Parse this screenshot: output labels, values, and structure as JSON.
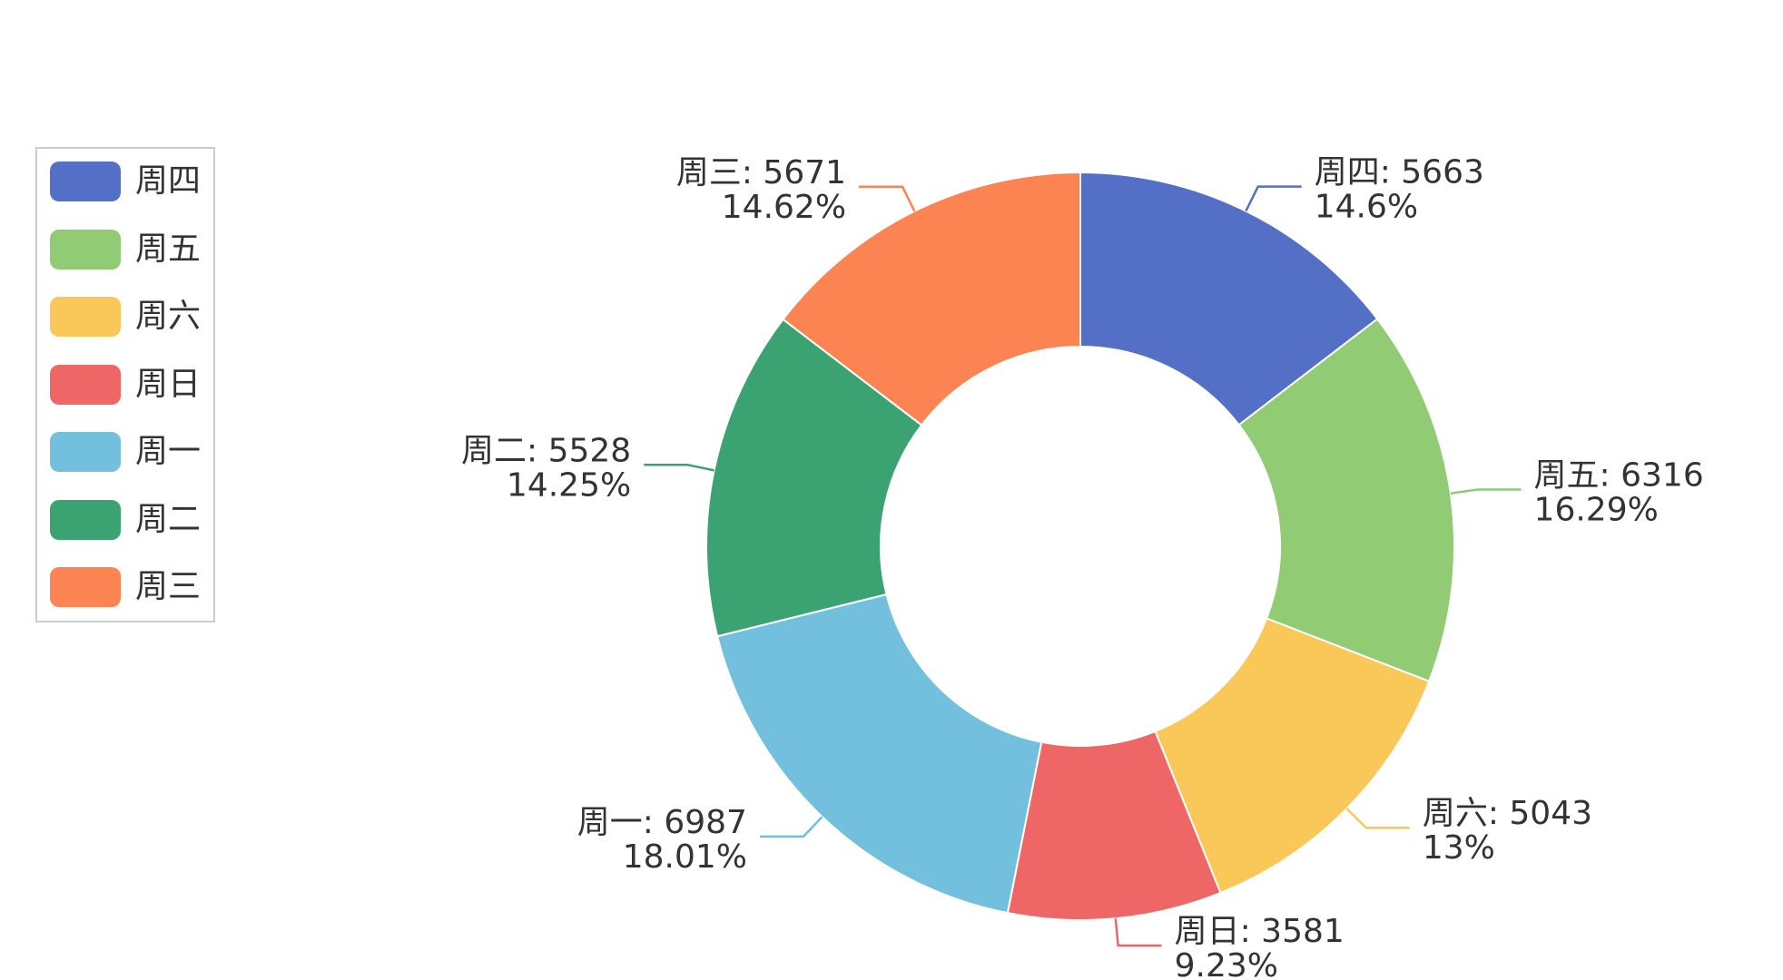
{
  "chart_data": {
    "type": "pie",
    "title": "",
    "donut": true,
    "legend_position": "left",
    "slices": [
      {
        "name": "周四",
        "value": 5663,
        "percent": "14.6%",
        "color": "#5470c6",
        "label": "周四: 5663"
      },
      {
        "name": "周五",
        "value": 6316,
        "percent": "16.29%",
        "color": "#91cc75",
        "label": "周五: 6316"
      },
      {
        "name": "周六",
        "value": 5043,
        "percent": "13%",
        "color": "#fac858",
        "label": "周六: 5043"
      },
      {
        "name": "周日",
        "value": 3581,
        "percent": "9.23%",
        "color": "#ee6666",
        "label": "周日: 3581"
      },
      {
        "name": "周一",
        "value": 6987,
        "percent": "18.01%",
        "color": "#73c0de",
        "label": "周一: 6987"
      },
      {
        "name": "周二",
        "value": 5528,
        "percent": "14.25%",
        "color": "#3ba272",
        "label": "周二: 5528"
      },
      {
        "name": "周三",
        "value": 5671,
        "percent": "14.62%",
        "color": "#fc8452",
        "label": "周三: 5671"
      }
    ]
  }
}
